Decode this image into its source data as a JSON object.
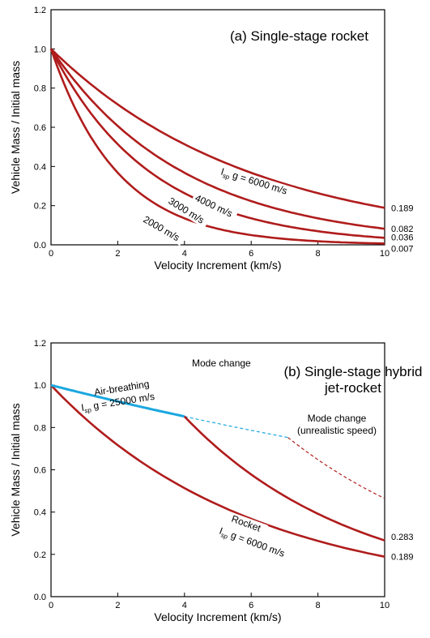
{
  "chart_data": [
    {
      "type": "line",
      "title": "(a) Single-stage rocket",
      "xlabel": "Velocity Increment (km/s)",
      "ylabel": "Vehicle Mass / Initial mass",
      "xlim": [
        0,
        10
      ],
      "ylim": [
        0,
        1.2
      ],
      "xticks": [
        "0",
        "2",
        "4",
        "6",
        "8",
        "10"
      ],
      "yticks": [
        "0.0",
        "0.2",
        "0.4",
        "0.6",
        "0.8",
        "1.0",
        "1.2"
      ],
      "series": [
        {
          "name": "I_sp g = 6000 m/s",
          "label_parts": [
            "I",
            "sp",
            " g = 6000 m/s"
          ],
          "ve": 6,
          "end_label": "0.189",
          "x": [
            0,
            1,
            2,
            3,
            4,
            5,
            6,
            7,
            8,
            9,
            10
          ],
          "y": [
            1.0,
            0.846,
            0.717,
            0.607,
            0.513,
            0.435,
            0.368,
            0.311,
            0.264,
            0.223,
            0.189
          ]
        },
        {
          "name": "4000 m/s",
          "ve": 4,
          "end_label": "0.082",
          "x": [
            0,
            1,
            2,
            3,
            4,
            5,
            6,
            7,
            8,
            9,
            10
          ],
          "y": [
            1.0,
            0.779,
            0.607,
            0.472,
            0.368,
            0.287,
            0.223,
            0.174,
            0.135,
            0.105,
            0.082
          ]
        },
        {
          "name": "3000 m/s",
          "ve": 3,
          "end_label": "0.036",
          "x": [
            0,
            1,
            2,
            3,
            4,
            5,
            6,
            7,
            8,
            9,
            10
          ],
          "y": [
            1.0,
            0.717,
            0.513,
            0.368,
            0.264,
            0.189,
            0.135,
            0.097,
            0.069,
            0.05,
            0.036
          ]
        },
        {
          "name": "2000 m/s",
          "ve": 2,
          "end_label": "0.007",
          "x": [
            0,
            1,
            2,
            3,
            4,
            5,
            6,
            7,
            8,
            9,
            10
          ],
          "y": [
            1.0,
            0.607,
            0.368,
            0.223,
            0.135,
            0.082,
            0.05,
            0.03,
            0.018,
            0.011,
            0.007
          ]
        }
      ],
      "colors": {
        "line": "#b01c1c"
      }
    },
    {
      "type": "line",
      "title_lines": [
        "(b) Single-stage hybrid",
        "jet-rocket"
      ],
      "xlabel": "Velocity Increment (km/s)",
      "ylabel": "Vehicle Mass / Initial mass",
      "xlim": [
        0,
        10
      ],
      "ylim": [
        0,
        1.2
      ],
      "xticks": [
        "0",
        "2",
        "4",
        "6",
        "8",
        "10"
      ],
      "yticks": [
        "0.0",
        "0.2",
        "0.4",
        "0.6",
        "0.8",
        "1.0",
        "1.2"
      ],
      "series": [
        {
          "name": "Air-breathing I_sp g = 25000 m/s",
          "label_line1": "Air-breathing",
          "label_parts": [
            "I",
            "sp",
            " g = 25000 m/s"
          ],
          "style": "solid",
          "color": "#1aa7e0",
          "x": [
            0,
            1,
            2,
            3,
            4
          ],
          "y": [
            1.0,
            0.961,
            0.923,
            0.887,
            0.852
          ]
        },
        {
          "name": "Air-breathing continued",
          "style": "dashed",
          "color": "#1aa7e0",
          "x": [
            4,
            5,
            6,
            7.1
          ],
          "y": [
            0.852,
            0.819,
            0.787,
            0.753
          ]
        },
        {
          "name": "Rocket after mode change",
          "style": "solid",
          "color": "#b01c1c",
          "end_label": "0.283",
          "x": [
            4,
            5,
            6,
            7,
            8,
            9,
            10
          ],
          "y": [
            0.852,
            0.721,
            0.61,
            0.516,
            0.437,
            0.37,
            0.283
          ]
        },
        {
          "name": "Rocket after late mode change",
          "style": "dashed",
          "color": "#b01c1c",
          "x": [
            7.1,
            8,
            9,
            10
          ],
          "y": [
            0.753,
            0.645,
            0.546,
            0.462
          ]
        },
        {
          "name": "Rocket I_sp g = 6000 m/s",
          "label_line1": "Rocket",
          "label_parts": [
            "I",
            "sp",
            " g = 6000 m/s"
          ],
          "style": "solid",
          "color": "#b01c1c",
          "end_label": "0.189",
          "x": [
            0,
            1,
            2,
            3,
            4,
            5,
            6,
            7,
            8,
            9,
            10
          ],
          "y": [
            1.0,
            0.846,
            0.717,
            0.607,
            0.513,
            0.435,
            0.368,
            0.311,
            0.264,
            0.223,
            0.189
          ]
        }
      ],
      "annotations": {
        "mode_change": "Mode change",
        "mode_change_late_line1": "Mode change",
        "mode_change_late_line2": "(unrealistic speed)"
      }
    }
  ]
}
